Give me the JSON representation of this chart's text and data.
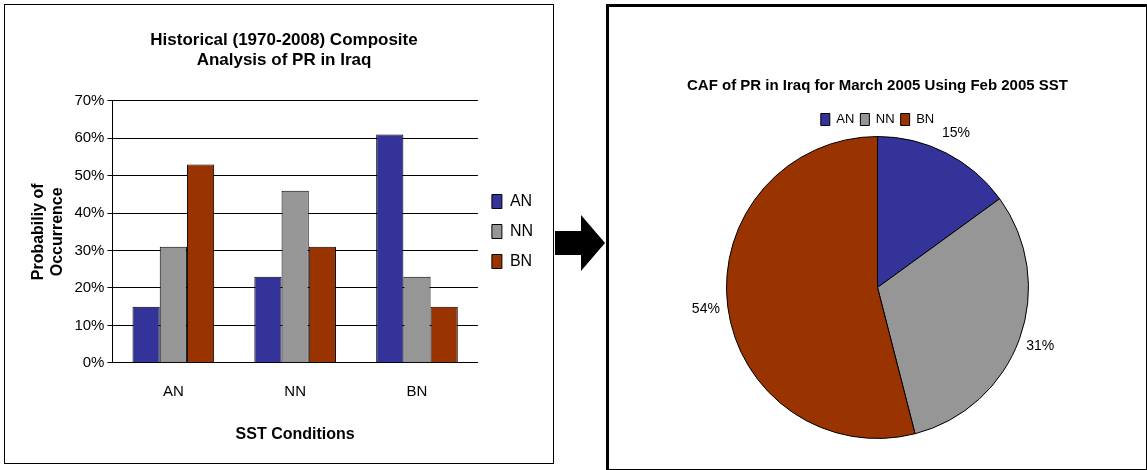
{
  "chart_data": [
    {
      "type": "bar",
      "title": "Historical (1970-2008) Composite Analysis of PR in Iraq",
      "xlabel": "SST Conditions",
      "ylabel": "Probabiliy of Occurrence",
      "categories": [
        "AN",
        "NN",
        "BN"
      ],
      "series": [
        {
          "name": "AN",
          "color": "#333399",
          "values": [
            15,
            23,
            61
          ]
        },
        {
          "name": "NN",
          "color": "#969696",
          "values": [
            31,
            46,
            23
          ]
        },
        {
          "name": "BN",
          "color": "#993300",
          "values": [
            53,
            31,
            15
          ]
        }
      ],
      "ylim": [
        0,
        70
      ],
      "yticks": [
        {
          "value": 0,
          "label": "0%"
        },
        {
          "value": 10,
          "label": "10%"
        },
        {
          "value": 20,
          "label": "20%"
        },
        {
          "value": 30,
          "label": "30%"
        },
        {
          "value": 40,
          "label": "40%"
        },
        {
          "value": 50,
          "label": "50%"
        },
        {
          "value": 60,
          "label": "60%"
        },
        {
          "value": 70,
          "label": "70%"
        }
      ],
      "grid": "y",
      "legend": "right"
    },
    {
      "type": "pie",
      "title": "CAF of PR in Iraq for March 2005 Using Feb 2005 SST",
      "categories": [
        "AN",
        "NN",
        "BN"
      ],
      "values": [
        15,
        31,
        54
      ],
      "colors": [
        "#333399",
        "#969696",
        "#993300"
      ],
      "value_labels": [
        "15%",
        "31%",
        "54%"
      ],
      "legend": "top"
    }
  ]
}
